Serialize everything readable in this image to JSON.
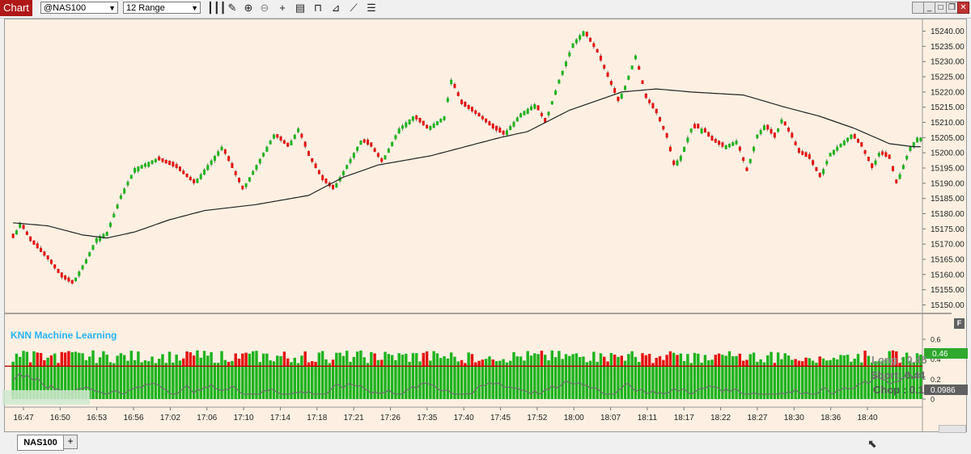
{
  "window": {
    "chart_tab": "Chart",
    "symbol": "@NAS100",
    "bar_type": "12 Range"
  },
  "toolbar_icons": [
    "bar-style-icon",
    "pencil-icon",
    "zoom-in-icon",
    "zoom-out-icon",
    "crosshair-icon",
    "data-box-icon",
    "strategy-icon",
    "indicators-icon",
    "drawing-tools-icon",
    "properties-icon"
  ],
  "indicator": {
    "name": "KNN Machine Learning",
    "long": "Long : 0.46",
    "short": "Short: 0.44",
    "chop": "Chop : 0.10",
    "long_value": "0.46",
    "chop_value": "0.0986",
    "threshold": 0.33,
    "chop_series_start": 0.22
  },
  "colors": {
    "up": "#1db31d",
    "down": "#e51010",
    "bg": "#fdf0e2",
    "sma": "#222222",
    "long_badge": "#2ea82e",
    "chop_badge": "#606060",
    "title": "#26b3f0"
  },
  "price_axis": [
    "15240.00",
    "15235.00",
    "15230.00",
    "15225.00",
    "15220.00",
    "15215.00",
    "15210.00",
    "15205.00",
    "15200.00",
    "15195.00",
    "15190.00",
    "15185.00",
    "15180.00",
    "15175.00",
    "15170.00",
    "15165.00",
    "15160.00",
    "15155.00",
    "15150.00"
  ],
  "ind_axis": [
    "0.6",
    "0.4",
    "0.2",
    "0"
  ],
  "time_axis": [
    "16:47",
    "16:50",
    "16:53",
    "16:56",
    "17:02",
    "17:06",
    "17:10",
    "17:14",
    "17:18",
    "17:21",
    "17:26",
    "17:35",
    "17:40",
    "17:45",
    "17:52",
    "18:00",
    "18:07",
    "18:11",
    "18:17",
    "18:22",
    "18:27",
    "18:30",
    "18:36",
    "18:40"
  ],
  "chart_data": {
    "type": "candlestick",
    "y_range": [
      15148,
      15242
    ],
    "price_path": [
      [
        0,
        15172
      ],
      [
        2,
        15177
      ],
      [
        5,
        15171
      ],
      [
        10,
        15165
      ],
      [
        14,
        15159
      ],
      [
        17,
        15157
      ],
      [
        21,
        15165
      ],
      [
        24,
        15172
      ],
      [
        27,
        15174
      ],
      [
        31,
        15186
      ],
      [
        35,
        15195
      ],
      [
        41,
        15198
      ],
      [
        47,
        15195
      ],
      [
        52,
        15190
      ],
      [
        56,
        15196
      ],
      [
        60,
        15202
      ],
      [
        63,
        15195
      ],
      [
        66,
        15188
      ],
      [
        72,
        15200
      ],
      [
        75,
        15206
      ],
      [
        79,
        15202
      ],
      [
        82,
        15208
      ],
      [
        85,
        15199
      ],
      [
        89,
        15191
      ],
      [
        92,
        15188
      ],
      [
        96,
        15196
      ],
      [
        100,
        15204
      ],
      [
        103,
        15202
      ],
      [
        106,
        15197
      ],
      [
        111,
        15208
      ],
      [
        115,
        15212
      ],
      [
        119,
        15208
      ],
      [
        124,
        15212
      ],
      [
        126,
        15224
      ],
      [
        129,
        15216
      ],
      [
        134,
        15212
      ],
      [
        138,
        15208
      ],
      [
        141,
        15206
      ],
      [
        146,
        15213
      ],
      [
        150,
        15216
      ],
      [
        153,
        15210
      ],
      [
        157,
        15224
      ],
      [
        161,
        15236
      ],
      [
        164,
        15240
      ],
      [
        168,
        15233
      ],
      [
        171,
        15225
      ],
      [
        174,
        15217
      ],
      [
        176,
        15222
      ],
      [
        179,
        15232
      ],
      [
        182,
        15218
      ],
      [
        185,
        15213
      ],
      [
        188,
        15205
      ],
      [
        190,
        15196
      ],
      [
        192,
        15199
      ],
      [
        195,
        15208
      ],
      [
        198,
        15208
      ],
      [
        201,
        15204
      ],
      [
        204,
        15202
      ],
      [
        208,
        15204
      ],
      [
        211,
        15194
      ],
      [
        214,
        15206
      ],
      [
        216,
        15209
      ],
      [
        219,
        15205
      ],
      [
        221,
        15211
      ],
      [
        224,
        15205
      ],
      [
        226,
        15200
      ],
      [
        229,
        15198
      ],
      [
        232,
        15192
      ],
      [
        235,
        15200
      ],
      [
        238,
        15203
      ],
      [
        241,
        15206
      ],
      [
        244,
        15202
      ],
      [
        247,
        15195
      ],
      [
        249,
        15200
      ],
      [
        252,
        15198
      ],
      [
        254,
        15190
      ],
      [
        256,
        15196
      ],
      [
        258,
        15202
      ],
      [
        260,
        15205
      ],
      [
        261,
        15205
      ]
    ],
    "sma_path": [
      [
        0,
        15177
      ],
      [
        10,
        15176
      ],
      [
        20,
        15173
      ],
      [
        27,
        15172
      ],
      [
        35,
        15174
      ],
      [
        45,
        15178
      ],
      [
        55,
        15181
      ],
      [
        70,
        15183
      ],
      [
        85,
        15186
      ],
      [
        95,
        15192
      ],
      [
        105,
        15196
      ],
      [
        120,
        15199
      ],
      [
        140,
        15205
      ],
      [
        148,
        15207
      ],
      [
        160,
        15214
      ],
      [
        175,
        15220
      ],
      [
        185,
        15221
      ],
      [
        195,
        15220
      ],
      [
        210,
        15219
      ],
      [
        222,
        15215
      ],
      [
        232,
        15212
      ],
      [
        242,
        15208
      ],
      [
        252,
        15203
      ],
      [
        259,
        15202
      ]
    ],
    "bar_count": 262
  }
}
